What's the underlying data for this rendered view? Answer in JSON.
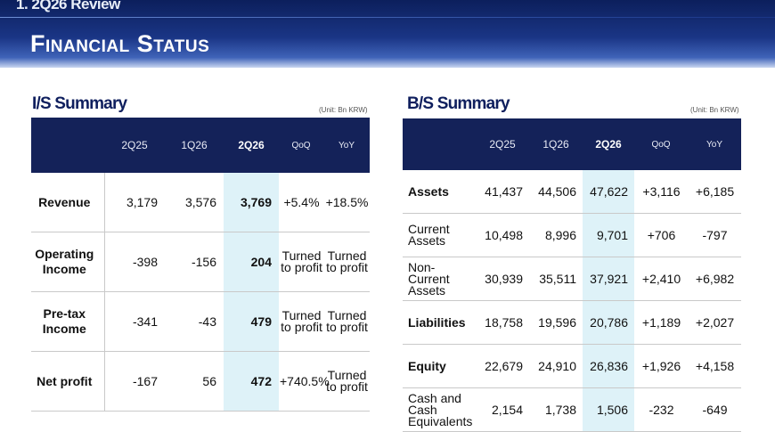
{
  "header": {
    "section": "1. 2Q26 Review",
    "title": "Financial Status"
  },
  "is_summary": {
    "title": "I/S Summary",
    "unit": "(Unit: Bn KRW)",
    "columns": [
      "",
      "2Q25",
      "1Q26",
      "2Q26",
      "QoQ",
      "YoY"
    ],
    "rows": [
      {
        "label": "Revenue",
        "cells": [
          "3,179",
          "3,576",
          "3,769",
          "+5.4%",
          "+18.5%"
        ]
      },
      {
        "label": "Operating Income",
        "cells": [
          "-398",
          "-156",
          "204",
          "Turned to profit",
          "Turned to profit"
        ]
      },
      {
        "label": "Pre-tax Income",
        "cells": [
          "-341",
          "-43",
          "479",
          "Turned to profit",
          "Turned to profit"
        ]
      },
      {
        "label": "Net profit",
        "cells": [
          "-167",
          "56",
          "472",
          "+740.5%",
          "Turned to profit"
        ]
      }
    ]
  },
  "bs_summary": {
    "title": "B/S Summary",
    "unit": "(Unit: Bn KRW)",
    "columns": [
      "",
      "2Q25",
      "1Q26",
      "2Q26",
      "QoQ",
      "YoY"
    ],
    "rows": [
      {
        "label": "Assets",
        "cells": [
          "41,437",
          "44,506",
          "47,622",
          "+3,116",
          "+6,185"
        ]
      },
      {
        "label": "Current Assets",
        "cells": [
          "10,498",
          "8,996",
          "9,701",
          "+706",
          "-797"
        ]
      },
      {
        "label": "Non-Current Assets",
        "cells": [
          "30,939",
          "35,511",
          "37,921",
          "+2,410",
          "+6,982"
        ]
      },
      {
        "label": "Liabilities",
        "cells": [
          "18,758",
          "19,596",
          "20,786",
          "+1,189",
          "+2,027"
        ]
      },
      {
        "label": "Equity",
        "cells": [
          "22,679",
          "24,910",
          "26,836",
          "+1,926",
          "+4,158"
        ]
      },
      {
        "label": "Cash and Cash Equivalents",
        "cells": [
          "2,154",
          "1,738",
          "1,506",
          "-232",
          "-649"
        ]
      }
    ]
  }
}
